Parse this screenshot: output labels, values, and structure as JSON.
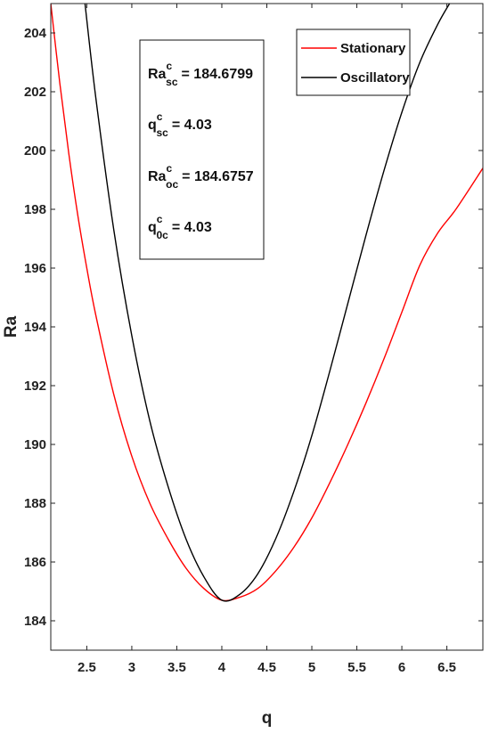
{
  "chart_data": {
    "type": "line",
    "xlabel": "q",
    "ylabel": "Ra",
    "xlim": [
      2.1,
      6.9
    ],
    "ylim": [
      183.0,
      205.0
    ],
    "xticks": [
      2.5,
      3,
      3.5,
      4,
      4.5,
      5,
      5.5,
      6,
      6.5
    ],
    "xtick_labels": [
      "2.5",
      "3",
      "3.5",
      "4",
      "4.5",
      "5",
      "5.5",
      "6",
      "6.5"
    ],
    "yticks": [
      184,
      186,
      188,
      190,
      192,
      194,
      196,
      198,
      200,
      202,
      204
    ],
    "ytick_labels": [
      "184",
      "186",
      "188",
      "190",
      "192",
      "194",
      "196",
      "198",
      "200",
      "202",
      "204"
    ],
    "grid": false,
    "legend_position": "top-right",
    "series": [
      {
        "name": "Stationary",
        "color": "#ff0000",
        "x": [
          2.1,
          2.2,
          2.3,
          2.4,
          2.5,
          2.6,
          2.8,
          3.0,
          3.2,
          3.4,
          3.6,
          3.8,
          4.0,
          4.2,
          4.4,
          4.6,
          4.8,
          5.0,
          5.2,
          5.4,
          5.6,
          5.8,
          6.0,
          6.2,
          6.4,
          6.6,
          6.9
        ],
        "y": [
          205.0,
          202.3,
          199.9,
          197.8,
          196.0,
          194.4,
          191.7,
          189.6,
          188.0,
          186.8,
          185.8,
          185.1,
          184.7,
          184.8,
          185.1,
          185.7,
          186.5,
          187.5,
          188.7,
          190.0,
          191.4,
          192.9,
          194.5,
          196.1,
          197.2,
          198.0,
          199.4
        ]
      },
      {
        "name": "Oscillatory",
        "color": "#000000",
        "x": [
          2.48,
          2.6,
          2.8,
          3.0,
          3.2,
          3.4,
          3.6,
          3.8,
          4.0,
          4.2,
          4.4,
          4.6,
          4.8,
          5.0,
          5.2,
          5.4,
          5.6,
          5.8,
          6.0,
          6.2,
          6.4,
          6.53
        ],
        "y": [
          205.0,
          201.8,
          197.3,
          193.7,
          190.8,
          188.6,
          186.8,
          185.5,
          184.7,
          184.9,
          185.6,
          186.8,
          188.4,
          190.3,
          192.5,
          194.8,
          197.1,
          199.3,
          201.3,
          203.0,
          204.3,
          205.0
        ]
      }
    ],
    "annotation": {
      "lines": [
        {
          "base": "Ra",
          "sup": "c",
          "sub": "sc",
          "value": "= 184.6799"
        },
        {
          "base": "q",
          "sup": "c",
          "sub": "sc",
          "value": "= 4.03"
        },
        {
          "base": "Ra",
          "sup": "c",
          "sub": "oc",
          "value": "= 184.6757"
        },
        {
          "base": "q",
          "sup": "c",
          "sub": "0c",
          "value": "= 4.03"
        }
      ]
    }
  }
}
